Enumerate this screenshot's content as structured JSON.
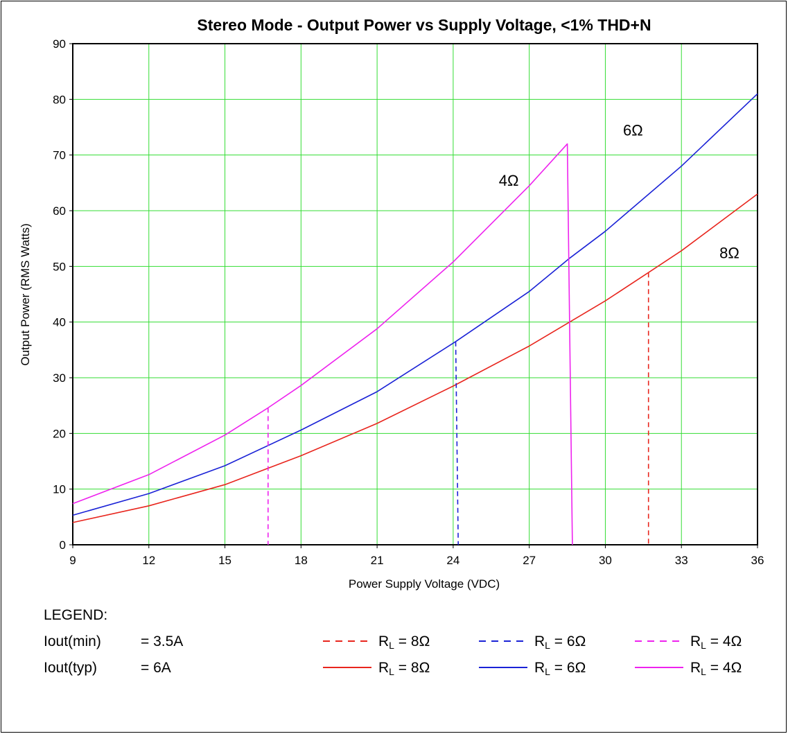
{
  "chart_data": {
    "type": "line",
    "title": "Stereo Mode - Output Power vs Supply Voltage, <1% THD+N",
    "xlabel": "Power Supply Voltage (VDC)",
    "ylabel": "Output Power (RMS Watts)",
    "xlim": [
      9,
      36
    ],
    "ylim": [
      0,
      90
    ],
    "xticks": [
      "9",
      "12",
      "15",
      "18",
      "21",
      "24",
      "27",
      "30",
      "33",
      "36"
    ],
    "yticks": [
      "0",
      "10",
      "20",
      "30",
      "40",
      "50",
      "60",
      "70",
      "80",
      "90"
    ],
    "grid": true,
    "grid_color": "#33dd33",
    "series": [
      {
        "name": "RL = 8Ω",
        "style": "solid",
        "color": "#e8251d",
        "x": [
          9,
          12,
          15,
          18,
          21,
          24,
          27,
          30,
          31.7,
          33,
          36
        ],
        "y": [
          4,
          7,
          10.8,
          16,
          21.8,
          28.5,
          35.7,
          43.8,
          48.9,
          52.8,
          63
        ]
      },
      {
        "name": "RL = 6Ω",
        "style": "solid",
        "color": "#1a22d6",
        "x": [
          9,
          12,
          15,
          18,
          21,
          24.1,
          27,
          28.6,
          30,
          33,
          36
        ],
        "y": [
          5.3,
          9.2,
          14.2,
          20.6,
          27.5,
          36.5,
          45.5,
          51.5,
          56.3,
          68,
          81
        ]
      },
      {
        "name": "RL = 4Ω",
        "style": "solid",
        "color": "#ee22ee",
        "x": [
          9,
          12,
          15,
          16.7,
          18,
          21,
          24,
          27,
          28.5,
          28.7
        ],
        "y": [
          7.4,
          12.6,
          19.7,
          24.6,
          28.6,
          38.8,
          50.8,
          64.5,
          72,
          0
        ]
      },
      {
        "name": "RL = 8Ω",
        "style": "dashed",
        "color": "#e8251d",
        "x": [
          31.7,
          31.7
        ],
        "y": [
          48.9,
          0
        ]
      },
      {
        "name": "RL = 6Ω",
        "style": "dashed",
        "color": "#1a22d6",
        "x": [
          24.1,
          24.2
        ],
        "y": [
          36.5,
          0
        ]
      },
      {
        "name": "RL = 4Ω",
        "style": "dashed",
        "color": "#ee22ee",
        "x": [
          16.7,
          16.7
        ],
        "y": [
          24.6,
          0
        ]
      }
    ],
    "annotations": [
      {
        "text": "4Ω",
        "x": 25.8,
        "y": 64.5
      },
      {
        "text": "6Ω",
        "x": 30.7,
        "y": 73.5
      },
      {
        "text": "8Ω",
        "x": 34.5,
        "y": 51.5
      }
    ],
    "legend": {
      "heading": "LEGEND:",
      "notes": [
        {
          "label": "Iout(min)",
          "value": "= 3.5A"
        },
        {
          "label": "Iout(typ)",
          "value": "= 6A"
        }
      ],
      "rows": [
        {
          "style": "dashed",
          "items": [
            {
              "prefix": "R",
              "sub": "L",
              "suffix": " = 8Ω",
              "color": "#e8251d"
            },
            {
              "prefix": "R",
              "sub": "L",
              "suffix": " = 6Ω",
              "color": "#1a22d6"
            },
            {
              "prefix": "R",
              "sub": "L",
              "suffix": " = 4Ω",
              "color": "#ee22ee"
            }
          ]
        },
        {
          "style": "solid",
          "items": [
            {
              "prefix": "R",
              "sub": "L",
              "suffix": " = 8Ω",
              "color": "#e8251d"
            },
            {
              "prefix": "R",
              "sub": "L",
              "suffix": " = 6Ω",
              "color": "#1a22d6"
            },
            {
              "prefix": "R",
              "sub": "L",
              "suffix": " = 4Ω",
              "color": "#ee22ee"
            }
          ]
        }
      ]
    }
  }
}
